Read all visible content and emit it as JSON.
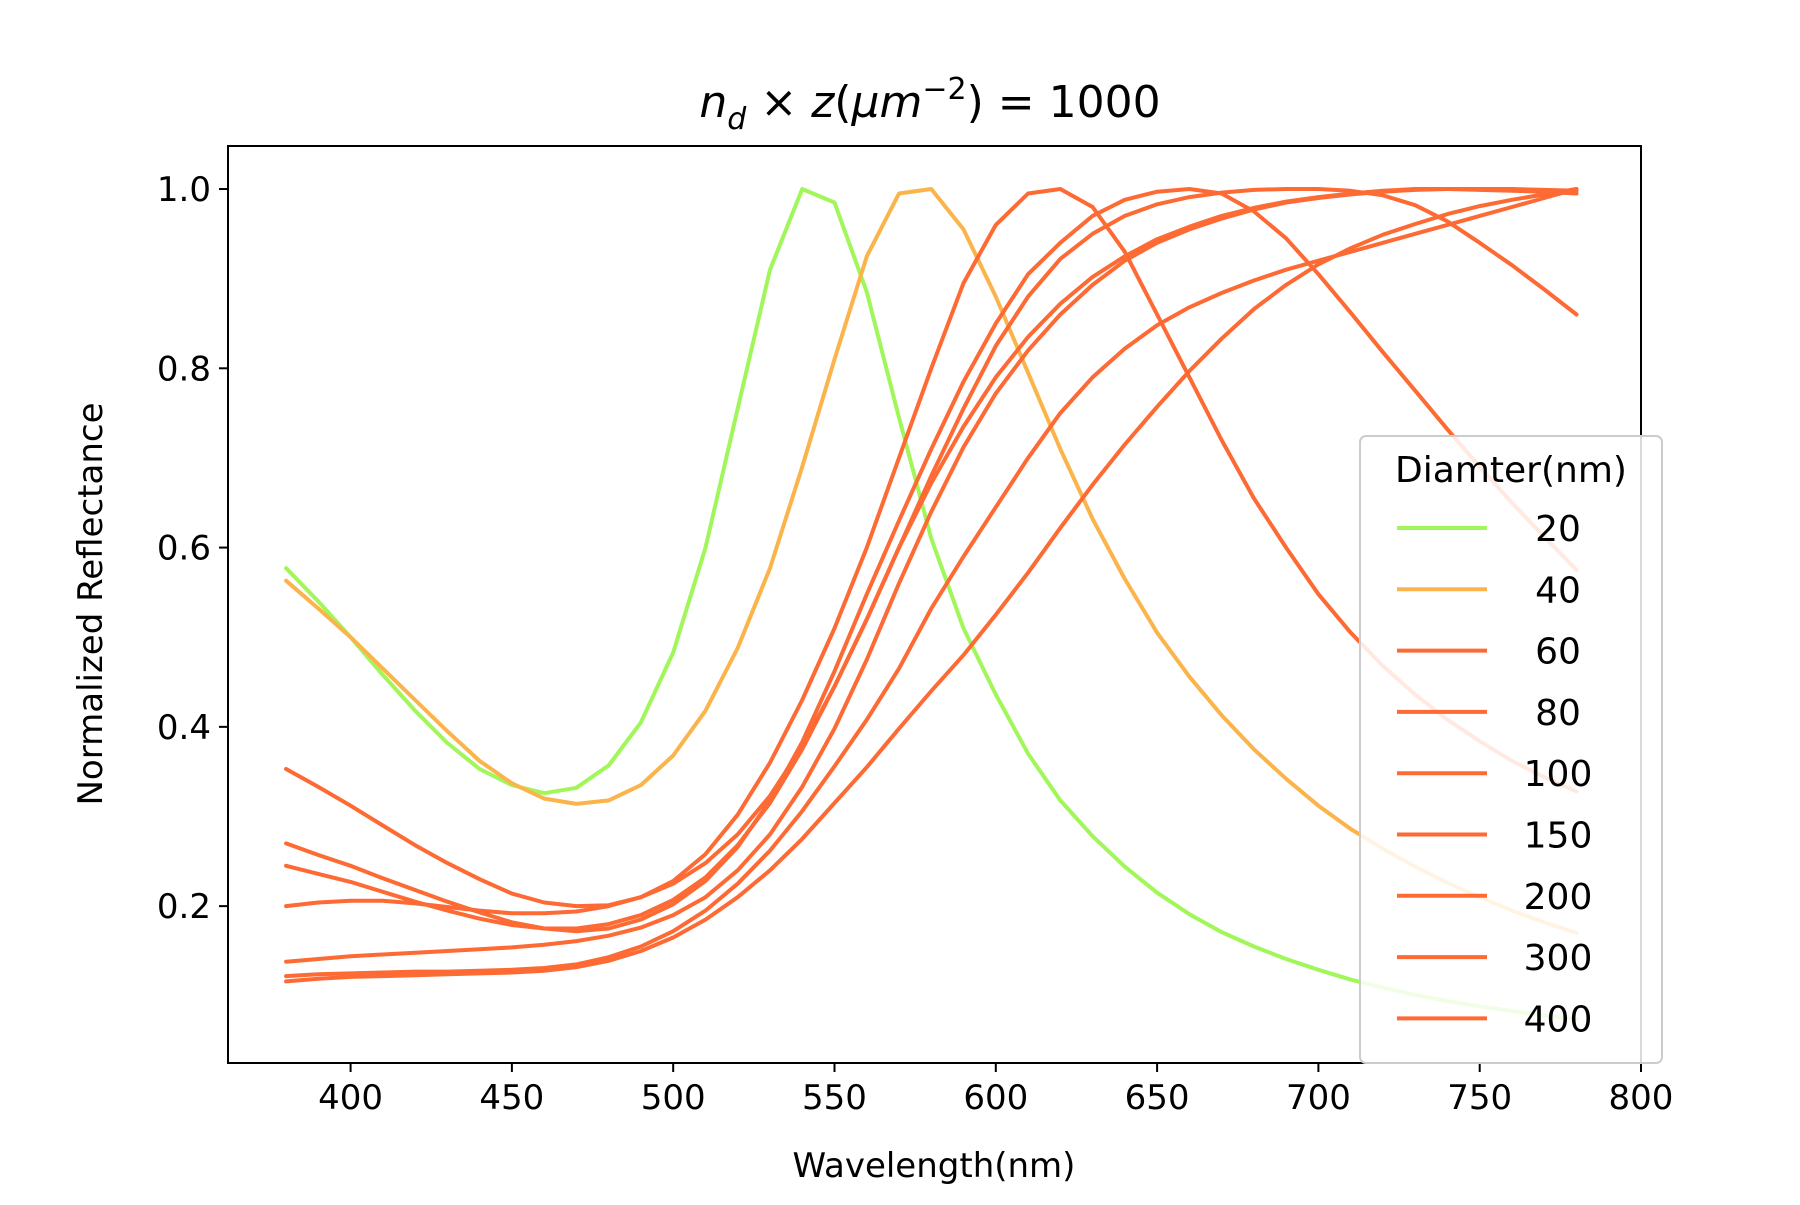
{
  "chart_data": {
    "type": "line",
    "title": "n_d × z(μm^-2) = 1000",
    "title_parts": {
      "n": "n",
      "sub": "d",
      "times": " × ",
      "z": "z",
      "open": "(",
      "mu": "μ",
      "m": "m",
      "sup": "−2",
      "close": ")",
      "eq": " = 1000"
    },
    "xlabel": "Wavelength(nm)",
    "ylabel": "Normalized Reflectance",
    "xlim": [
      362,
      800
    ],
    "ylim": [
      0.025,
      1.048
    ],
    "xticks": [
      400,
      450,
      500,
      550,
      600,
      650,
      700,
      750,
      800
    ],
    "yticks": [
      0.2,
      0.4,
      0.6,
      0.8,
      1.0
    ],
    "xtick_labels": [
      "400",
      "450",
      "500",
      "550",
      "600",
      "650",
      "700",
      "750",
      "800"
    ],
    "ytick_labels": [
      "0.2",
      "0.4",
      "0.6",
      "0.8",
      "1.0"
    ],
    "grid": false,
    "legend": {
      "title": "Diamter(nm)",
      "position": "right"
    },
    "x": [
      380,
      390,
      400,
      410,
      420,
      430,
      440,
      450,
      460,
      470,
      480,
      490,
      500,
      510,
      520,
      530,
      540,
      550,
      560,
      570,
      580,
      590,
      600,
      610,
      620,
      630,
      640,
      650,
      660,
      670,
      680,
      690,
      700,
      710,
      720,
      730,
      740,
      750,
      760,
      770,
      780
    ],
    "series": [
      {
        "name": "20",
        "color": "#a1f65a",
        "values": [
          0.577,
          0.54,
          0.5,
          0.458,
          0.418,
          0.382,
          0.353,
          0.335,
          0.326,
          0.332,
          0.357,
          0.405,
          0.483,
          0.6,
          0.755,
          0.91,
          1.0,
          0.985,
          0.885,
          0.745,
          0.61,
          0.51,
          0.436,
          0.37,
          0.318,
          0.278,
          0.244,
          0.215,
          0.191,
          0.171,
          0.155,
          0.141,
          0.129,
          0.118,
          0.109,
          0.101,
          0.094,
          0.088,
          0.083,
          0.078,
          0.074
        ]
      },
      {
        "name": "40",
        "color": "#fbb44b",
        "values": [
          0.563,
          0.532,
          0.5,
          0.465,
          0.43,
          0.395,
          0.362,
          0.337,
          0.32,
          0.314,
          0.318,
          0.335,
          0.368,
          0.418,
          0.488,
          0.577,
          0.69,
          0.81,
          0.925,
          0.995,
          1.0,
          0.955,
          0.88,
          0.795,
          0.71,
          0.632,
          0.565,
          0.505,
          0.456,
          0.413,
          0.375,
          0.342,
          0.312,
          0.286,
          0.264,
          0.244,
          0.226,
          0.21,
          0.195,
          0.182,
          0.17
        ]
      },
      {
        "name": "60",
        "color": "#fd6a34",
        "values": [
          0.353,
          0.333,
          0.312,
          0.29,
          0.268,
          0.248,
          0.23,
          0.214,
          0.204,
          0.2,
          0.201,
          0.21,
          0.228,
          0.258,
          0.302,
          0.36,
          0.43,
          0.51,
          0.6,
          0.7,
          0.8,
          0.895,
          0.96,
          0.995,
          1.0,
          0.98,
          0.93,
          0.86,
          0.79,
          0.72,
          0.655,
          0.6,
          0.548,
          0.505,
          0.468,
          0.436,
          0.408,
          0.384,
          0.362,
          0.344,
          0.328
        ]
      },
      {
        "name": "80",
        "color": "#fd6a34",
        "values": [
          0.27,
          0.257,
          0.245,
          0.231,
          0.218,
          0.205,
          0.193,
          0.182,
          0.175,
          0.172,
          0.175,
          0.185,
          0.202,
          0.228,
          0.266,
          0.318,
          0.383,
          0.462,
          0.548,
          0.63,
          0.71,
          0.785,
          0.85,
          0.905,
          0.94,
          0.97,
          0.988,
          0.997,
          1.0,
          0.995,
          0.975,
          0.945,
          0.905,
          0.862,
          0.818,
          0.775,
          0.732,
          0.69,
          0.65,
          0.612,
          0.575
        ]
      },
      {
        "name": "100",
        "color": "#fd6a34",
        "values": [
          0.245,
          0.236,
          0.227,
          0.216,
          0.205,
          0.195,
          0.186,
          0.179,
          0.175,
          0.175,
          0.18,
          0.19,
          0.207,
          0.232,
          0.268,
          0.315,
          0.375,
          0.445,
          0.52,
          0.6,
          0.68,
          0.755,
          0.825,
          0.88,
          0.922,
          0.95,
          0.97,
          0.983,
          0.991,
          0.996,
          0.999,
          1.0,
          1.0,
          0.998,
          0.993,
          0.982,
          0.964,
          0.94,
          0.915,
          0.888,
          0.86
        ]
      },
      {
        "name": "150",
        "color": "#fd6a34",
        "values": [
          0.2,
          0.204,
          0.206,
          0.206,
          0.203,
          0.199,
          0.195,
          0.192,
          0.192,
          0.194,
          0.2,
          0.21,
          0.225,
          0.248,
          0.28,
          0.323,
          0.378,
          0.445,
          0.52,
          0.6,
          0.672,
          0.735,
          0.79,
          0.835,
          0.872,
          0.902,
          0.925,
          0.944,
          0.958,
          0.97,
          0.979,
          0.986,
          0.991,
          0.995,
          0.998,
          1.0,
          1.0,
          0.999,
          0.998,
          0.997,
          0.995
        ]
      },
      {
        "name": "200",
        "color": "#fd6a34",
        "values": [
          0.138,
          0.141,
          0.144,
          0.146,
          0.148,
          0.15,
          0.152,
          0.154,
          0.157,
          0.161,
          0.167,
          0.176,
          0.19,
          0.21,
          0.24,
          0.28,
          0.333,
          0.398,
          0.475,
          0.56,
          0.64,
          0.712,
          0.772,
          0.82,
          0.86,
          0.893,
          0.92,
          0.94,
          0.955,
          0.967,
          0.977,
          0.985,
          0.99,
          0.994,
          0.997,
          0.999,
          1.0,
          1.0,
          1.0,
          0.999,
          0.998
        ]
      },
      {
        "name": "300",
        "color": "#fd6a34",
        "values": [
          0.122,
          0.124,
          0.125,
          0.126,
          0.127,
          0.127,
          0.128,
          0.129,
          0.131,
          0.135,
          0.143,
          0.155,
          0.172,
          0.195,
          0.225,
          0.262,
          0.306,
          0.356,
          0.408,
          0.465,
          0.532,
          0.59,
          0.645,
          0.7,
          0.75,
          0.79,
          0.822,
          0.848,
          0.868,
          0.884,
          0.898,
          0.91,
          0.92,
          0.93,
          0.94,
          0.95,
          0.96,
          0.97,
          0.98,
          0.99,
          1.0
        ]
      },
      {
        "name": "400",
        "color": "#fd6a34",
        "values": [
          0.116,
          0.119,
          0.121,
          0.122,
          0.123,
          0.124,
          0.125,
          0.126,
          0.128,
          0.132,
          0.139,
          0.15,
          0.165,
          0.185,
          0.21,
          0.24,
          0.275,
          0.315,
          0.355,
          0.398,
          0.44,
          0.48,
          0.525,
          0.572,
          0.622,
          0.67,
          0.715,
          0.757,
          0.797,
          0.833,
          0.866,
          0.893,
          0.916,
          0.934,
          0.949,
          0.961,
          0.972,
          0.981,
          0.988,
          0.994,
          1.0
        ]
      }
    ]
  }
}
